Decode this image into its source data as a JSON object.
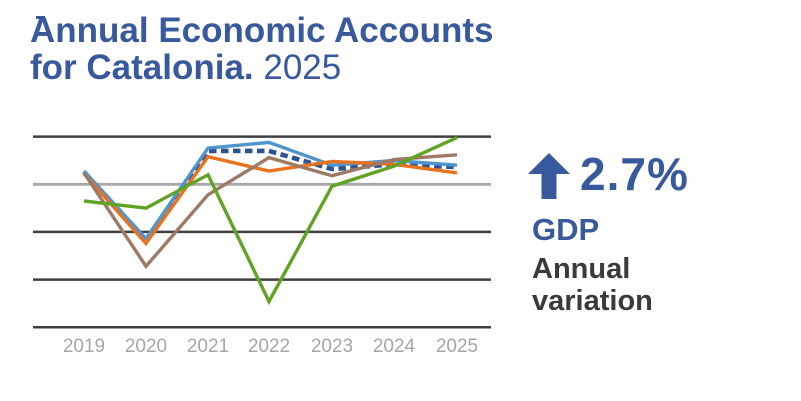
{
  "page": {
    "background": "#FFFFFF"
  },
  "header": {
    "title_line1": "Annual Economic Accounts",
    "title_line2_bold": "for Catalonia.",
    "title_line2_year": "2025",
    "accent_color": "#38599B"
  },
  "callout": {
    "trend_icon": "up-arrow",
    "value": "2.7%",
    "metric": "GDP",
    "description": "Annual\nvariation",
    "value_color": "#38599B",
    "description_color": "#3A3A3A"
  },
  "chart_data": {
    "type": "line",
    "title": "",
    "xlabel": "",
    "ylabel": "",
    "categories": [
      "2019",
      "2020",
      "2021",
      "2022",
      "2023",
      "2024",
      "2025"
    ],
    "series": [
      {
        "name": "dark-blue-dashed",
        "color": "#2E5393",
        "style": "dashed",
        "values": [
          1.3,
          -6.0,
          3.5,
          3.5,
          1.6,
          2.1,
          1.8
        ]
      },
      {
        "name": "light-blue",
        "color": "#4E95D0",
        "style": "solid",
        "values": [
          1.4,
          -5.7,
          3.8,
          4.4,
          2.0,
          2.5,
          2.0
        ]
      },
      {
        "name": "orange",
        "color": "#E8731E",
        "style": "solid",
        "values": [
          1.1,
          -6.2,
          2.9,
          1.4,
          2.4,
          2.1,
          1.2
        ]
      },
      {
        "name": "brown",
        "color": "#9E7A66",
        "style": "solid",
        "values": [
          1.2,
          -8.6,
          -1.1,
          2.8,
          0.9,
          2.6,
          3.1
        ]
      },
      {
        "name": "green",
        "color": "#61A425",
        "style": "solid",
        "values": [
          -1.75,
          -2.5,
          1.0,
          -12.3,
          -0.2,
          1.9,
          4.9
        ]
      }
    ],
    "gridline_values": [
      5,
      0,
      -5,
      -10,
      -15
    ],
    "ylim": [
      -16.5,
      7
    ],
    "gridline_color_major": "#3F3F3F",
    "gridline_color_zero": "#A8A8A8",
    "x_tick_color": "#A6A6A6",
    "legend_position": "none",
    "y_axis_tick_labels": "none"
  }
}
